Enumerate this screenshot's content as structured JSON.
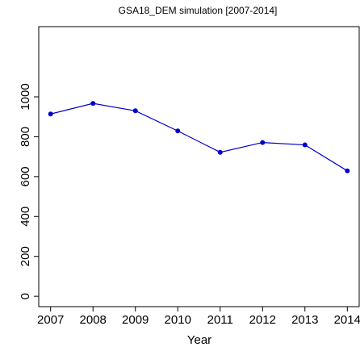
{
  "chart_data": {
    "type": "line",
    "title": "GSA18_DEM simulation [2007-2014]",
    "xlabel": "Year",
    "x": [
      2007,
      2008,
      2009,
      2010,
      2011,
      2012,
      2013,
      2014
    ],
    "series": [
      {
        "color": "#0000cc",
        "values": [
          914,
          967,
          930,
          829,
          722,
          771,
          759,
          629
        ]
      }
    ],
    "xlim": [
      2006.72,
      2014.28
    ],
    "xticks": [
      2007,
      2008,
      2009,
      2010,
      2011,
      2012,
      2013,
      2014
    ],
    "ylim": [
      -52,
      1352
    ],
    "yticks": [
      0,
      200,
      400,
      600,
      800,
      1000
    ]
  }
}
